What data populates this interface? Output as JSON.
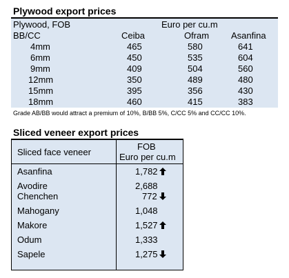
{
  "plywood": {
    "title": "Plywood export prices",
    "header_left_1": "Plywood, FOB",
    "header_left_2": "BB/CC",
    "unit": "Euro per cu.m",
    "columns": [
      "Ceiba",
      "Ofram",
      "Asanfina"
    ],
    "rows": [
      {
        "size": "4mm",
        "values": [
          "465",
          "580",
          "641"
        ]
      },
      {
        "size": "6mm",
        "values": [
          "450",
          "535",
          "604"
        ]
      },
      {
        "size": "9mm",
        "values": [
          "409",
          "504",
          "560"
        ]
      },
      {
        "size": "12mm",
        "values": [
          "350",
          "489",
          "480"
        ]
      },
      {
        "size": "15mm",
        "values": [
          "395",
          "356",
          "430"
        ]
      },
      {
        "size": "18mm",
        "values": [
          "460",
          "415",
          "383"
        ]
      }
    ],
    "note": "Grade AB/BB would attract a premium of 10%, B/BB 5%, C/CC 5% and CC/CC 10%."
  },
  "veneer": {
    "title": "Sliced veneer export prices",
    "header_left": "Sliced face veneer",
    "header_right_1": "FOB",
    "header_right_2": "Euro per cu.m",
    "rows": [
      {
        "name": "Asanfina",
        "value": "1,782",
        "trend": "up"
      },
      {
        "name": "Avodire",
        "value": "2,688",
        "trend": "none"
      },
      {
        "name": "Chenchen",
        "value": "772",
        "trend": "down"
      },
      {
        "name": "Mahogany",
        "value": "1,048",
        "trend": "none"
      },
      {
        "name": "Makore",
        "value": "1,527",
        "trend": "up"
      },
      {
        "name": "Odum",
        "value": "1,333",
        "trend": "none"
      },
      {
        "name": "Sapele",
        "value": "1,275",
        "trend": "down"
      }
    ]
  },
  "icons": {
    "up": "arrow-up-icon",
    "down": "arrow-down-icon"
  }
}
